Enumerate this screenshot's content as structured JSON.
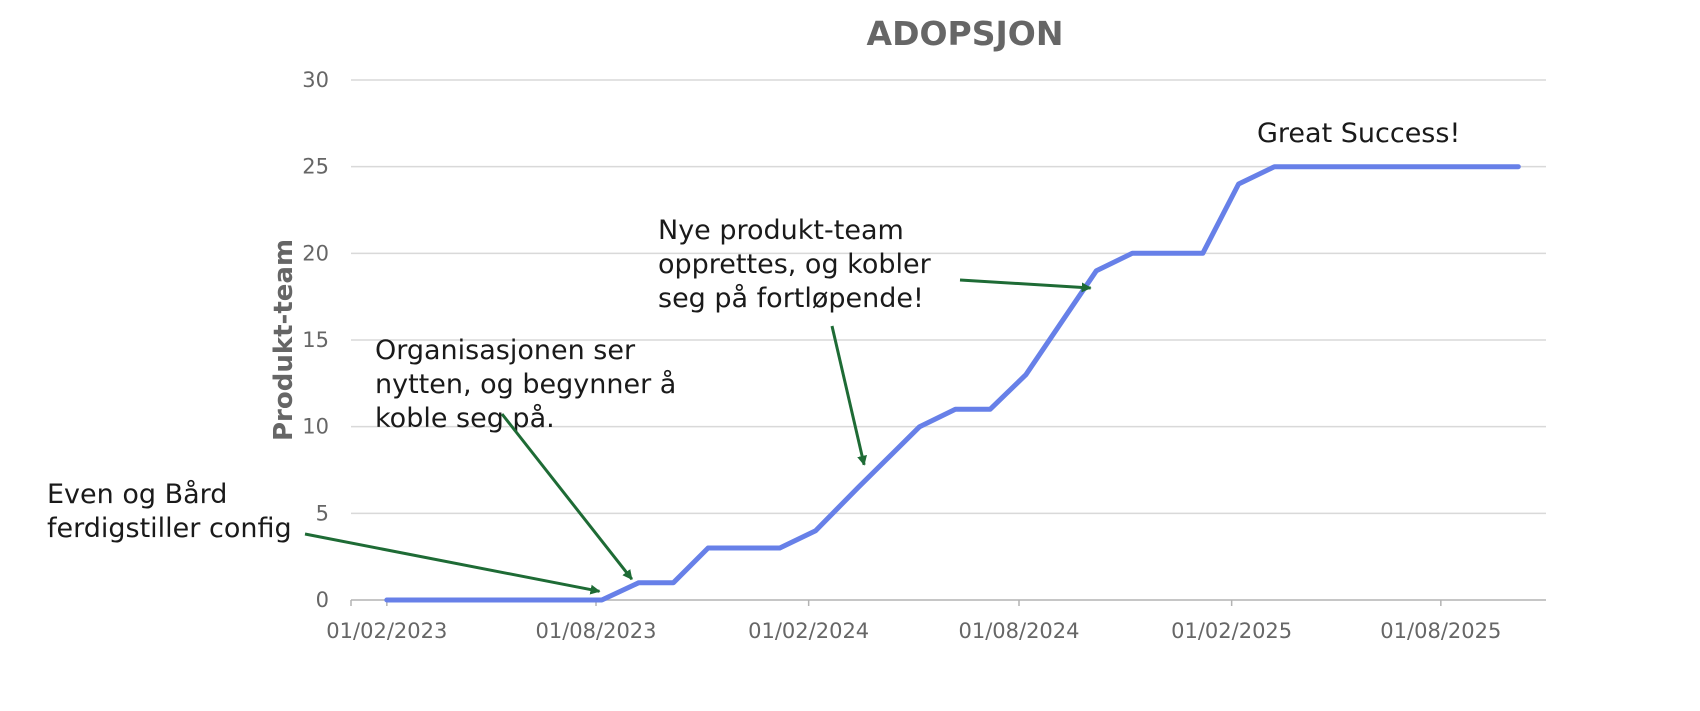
{
  "chart_data": {
    "type": "line",
    "title": "ADOPSJON",
    "ylabel": "Produkt-team",
    "xlabel": "",
    "ylim": [
      0,
      30
    ],
    "xlim": [
      "2023-01-01",
      "2025-10-31"
    ],
    "grid": true,
    "yticks": [
      0,
      5,
      10,
      15,
      20,
      25,
      30
    ],
    "xticks": [
      {
        "date": "2023-02-01",
        "label": "01/02/2023"
      },
      {
        "date": "2023-08-01",
        "label": "01/08/2023"
      },
      {
        "date": "2024-02-01",
        "label": "01/02/2024"
      },
      {
        "date": "2024-08-01",
        "label": "01/08/2024"
      },
      {
        "date": "2025-02-01",
        "label": "01/02/2025"
      },
      {
        "date": "2025-08-01",
        "label": "01/08/2025"
      }
    ],
    "series": [
      {
        "color": "#6780e8",
        "points": [
          [
            "2023-02-01",
            0
          ],
          [
            "2023-08-06",
            0
          ],
          [
            "2023-09-07",
            1
          ],
          [
            "2023-10-07",
            1
          ],
          [
            "2023-11-06",
            3
          ],
          [
            "2024-01-07",
            3
          ],
          [
            "2024-02-07",
            4
          ],
          [
            "2024-03-15",
            6.5
          ],
          [
            "2024-05-07",
            10
          ],
          [
            "2024-06-07",
            11
          ],
          [
            "2024-07-07",
            11
          ],
          [
            "2024-08-07",
            13
          ],
          [
            "2024-10-07",
            19
          ],
          [
            "2024-11-07",
            20
          ],
          [
            "2025-01-07",
            20
          ],
          [
            "2025-02-07",
            24
          ],
          [
            "2025-03-10",
            25
          ],
          [
            "2025-10-07",
            25
          ]
        ]
      }
    ],
    "annotations": [
      {
        "lines": [
          "Even og Bård",
          "ferdigstiller config"
        ],
        "target": [
          "2023-08-04",
          0.5
        ]
      },
      {
        "lines": [
          "Organisasjonen ser",
          "nytten, og begynner å",
          "koble seg på."
        ],
        "target": [
          "2023-09-01",
          1.2
        ]
      },
      {
        "lines": [
          "Nye produkt-team",
          "opprettes, og kobler",
          "seg på fortløpende!"
        ],
        "target": [
          "2024-03-20",
          7.8
        ]
      },
      {
        "lines": [
          "Nye produkt-team",
          "opprettes, og kobler",
          "seg på fortløpende!"
        ],
        "target": [
          "2024-10-02",
          18.0
        ]
      },
      {
        "lines": [
          "Great Success!"
        ],
        "target": null
      }
    ],
    "arrow_color": "#1e6b35"
  }
}
